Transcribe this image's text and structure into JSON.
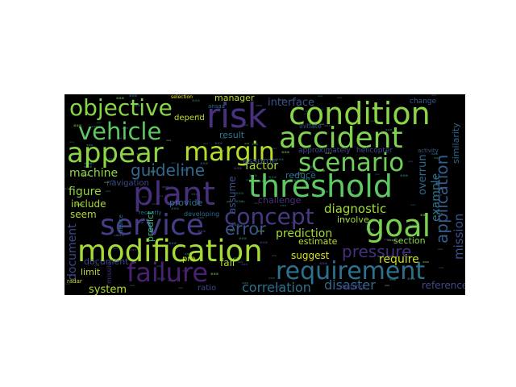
{
  "figure": {
    "background": "#ffffff",
    "cloud_background": "#000000"
  },
  "words": [
    {
      "text": "objective",
      "color": "#87d44b"
    },
    {
      "text": "risk",
      "color": "#48317f"
    },
    {
      "text": "condition",
      "color": "#8bd646"
    },
    {
      "text": "vehicle",
      "color": "#5ec962"
    },
    {
      "text": "accident",
      "color": "#7fd34e"
    },
    {
      "text": "appear",
      "color": "#8bd646"
    },
    {
      "text": "margin",
      "color": "#b5de2b"
    },
    {
      "text": "scenario",
      "color": "#6ece58"
    },
    {
      "text": "guideline",
      "color": "#31688e"
    },
    {
      "text": "plant",
      "color": "#472f7d"
    },
    {
      "text": "threshold",
      "color": "#5ec962"
    },
    {
      "text": "service",
      "color": "#433e85"
    },
    {
      "text": "concept",
      "color": "#443a83"
    },
    {
      "text": "goal",
      "color": "#7ad151"
    },
    {
      "text": "error",
      "color": "#3a548c"
    },
    {
      "text": "modification",
      "color": "#a5db36"
    },
    {
      "text": "failure",
      "color": "#482173"
    },
    {
      "text": "requirement",
      "color": "#2c728e"
    },
    {
      "text": "pressure",
      "color": "#462f7c"
    },
    {
      "text": "application",
      "color": "#365c8d"
    },
    {
      "text": "interface",
      "color": "#3b528b"
    },
    {
      "text": "manager",
      "color": "#b8de29"
    },
    {
      "text": "depend",
      "color": "#c2df23"
    },
    {
      "text": "factor",
      "color": "#a8db34"
    },
    {
      "text": "assume",
      "color": "#3b528b"
    },
    {
      "text": "diagnostic",
      "color": "#a0da39"
    },
    {
      "text": "prediction",
      "color": "#a2da37"
    },
    {
      "text": "machine",
      "color": "#8fd744"
    },
    {
      "text": "figure",
      "color": "#90d743"
    },
    {
      "text": "include",
      "color": "#addc30"
    },
    {
      "text": "seem",
      "color": "#addc30"
    },
    {
      "text": "document",
      "color": "#3e4989"
    },
    {
      "text": "limit",
      "color": "#b5de2b"
    },
    {
      "text": "system",
      "color": "#b0dd2f"
    },
    {
      "text": "correlation",
      "color": "#2c718e"
    },
    {
      "text": "disaster",
      "color": "#31688e"
    },
    {
      "text": "reference",
      "color": "#3e4989"
    },
    {
      "text": "require",
      "color": "#c8e020"
    },
    {
      "text": "section",
      "color": "#8bd646"
    },
    {
      "text": "estimate",
      "color": "#bade28"
    },
    {
      "text": "suggest",
      "color": "#d8e219"
    },
    {
      "text": "involve",
      "color": "#9dd93b"
    },
    {
      "text": "tend",
      "color": "#addc30"
    },
    {
      "text": "change",
      "color": "#38598c"
    },
    {
      "text": "example",
      "color": "#2d708e"
    },
    {
      "text": "overrun",
      "color": "#31688e"
    },
    {
      "text": "mission",
      "color": "#3b528b"
    },
    {
      "text": "similarity",
      "color": "#31688e"
    },
    {
      "text": "reduce",
      "color": "#2c728e"
    },
    {
      "text": "provide",
      "color": "#2d708e"
    },
    {
      "text": "predict",
      "color": "#35b779"
    },
    {
      "text": "navigation",
      "color": "#3e4989"
    },
    {
      "text": "result",
      "color": "#2a788e"
    },
    {
      "text": "fail",
      "color": "#addc30"
    },
    {
      "text": "ratio",
      "color": "#3e4989"
    },
    {
      "text": "developing",
      "color": "#31688e"
    },
    {
      "text": "initiate",
      "color": "#38598c"
    },
    {
      "text": "activity",
      "color": "#38598c"
    },
    {
      "text": "shaping",
      "color": "#443a83"
    },
    {
      "text": "approximately",
      "color": "#3e4989"
    },
    {
      "text": "helicopter",
      "color": "#3e4989"
    },
    {
      "text": "challenge",
      "color": "#46327e"
    },
    {
      "text": "pra",
      "color": "#c2df23"
    },
    {
      "text": "selection",
      "color": "#e5e419"
    },
    {
      "text": "radar",
      "color": "#c8e020"
    },
    {
      "text": "missile",
      "color": "#46327e"
    },
    {
      "text": "device",
      "color": "#2c728e"
    },
    {
      "text": "ansaa",
      "color": "#2c728e"
    },
    {
      "text": "recently",
      "color": "#31688e"
    }
  ]
}
